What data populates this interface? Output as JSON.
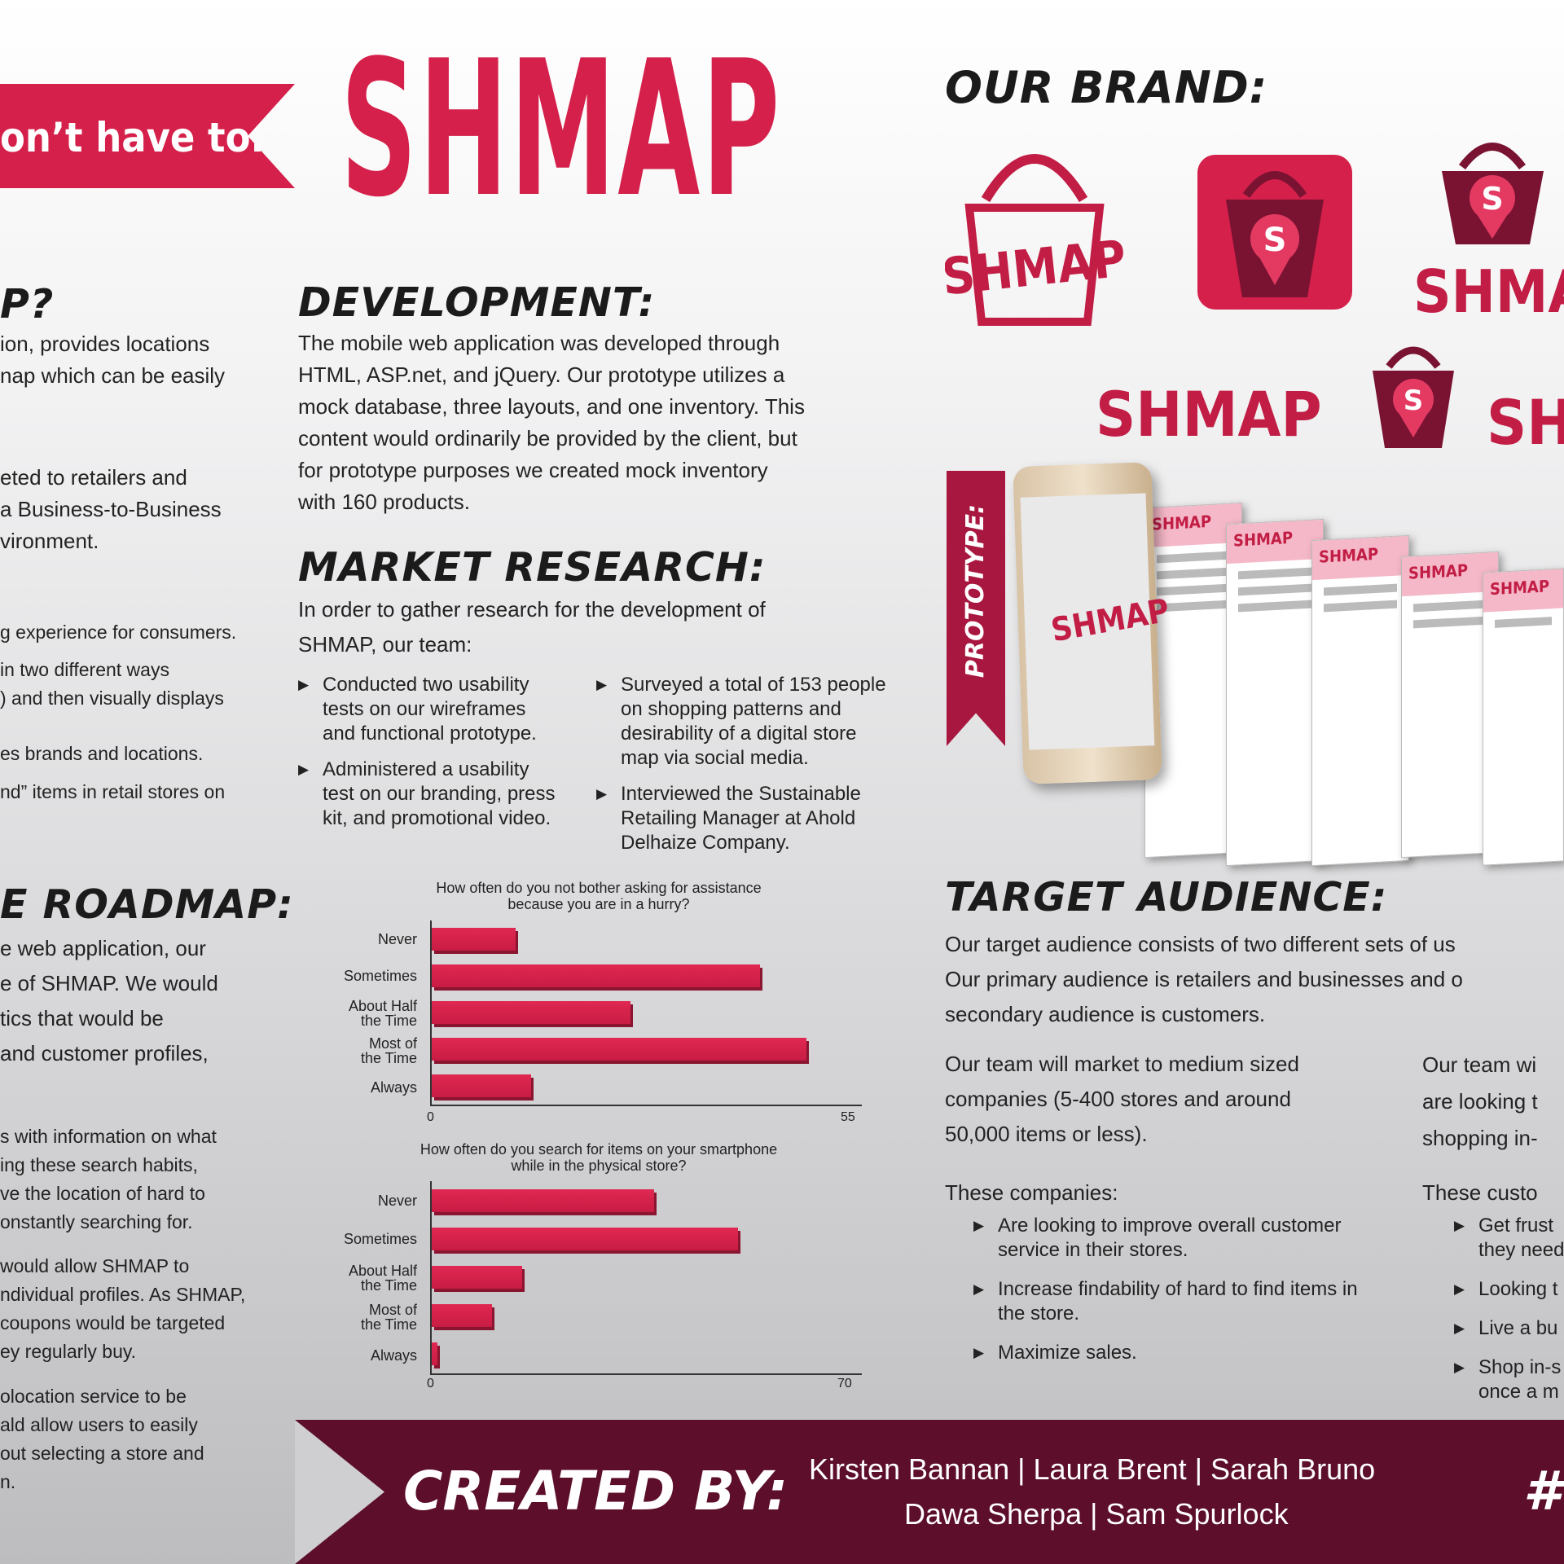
{
  "banner": {
    "text": "on’t have to."
  },
  "logo": {
    "title": "SHMAP"
  },
  "brand": {
    "heading": "OUR BRAND:",
    "logos": [
      "SHMAP",
      "S",
      "S",
      "SHMAP",
      "SHMAP",
      "S",
      "SH"
    ]
  },
  "left": {
    "h1": "P?",
    "p1": [
      "ion, provides locations",
      "nap which can be easily"
    ],
    "p2": [
      "eted to retailers and",
      "a Business-to-Business",
      "vironment."
    ],
    "p3": [
      "g experience for consumers."
    ],
    "p4": [
      "in two different ways",
      ") and then visually displays"
    ],
    "p5": [
      "es brands and locations."
    ],
    "p6": [
      "nd” items in retail stores on"
    ],
    "h2": "E ROADMAP:",
    "p7": [
      "e web application, our",
      "e of SHMAP. We would",
      "tics that would be",
      "and customer profiles,"
    ],
    "p8": [
      "s with information on what",
      "ing these search habits,",
      "ve the location of hard to",
      "onstantly searching for."
    ],
    "p9": [
      "would allow SHMAP to",
      "ndividual profiles. As SHMAP,",
      "coupons would be targeted",
      "ey regularly buy."
    ],
    "p10": [
      "olocation service to be",
      "ald allow users to easily",
      "out selecting a store and",
      "n."
    ]
  },
  "development": {
    "heading": "DEVELOPMENT:",
    "lines": [
      "The mobile web application was developed through",
      "HTML, ASP.net, and jQuery.  Our prototype utilizes a",
      "mock database, three layouts, and one inventory. This",
      "content would ordinarily be provided by the client, but",
      "for prototype purposes we created mock inventory",
      "with 160 products."
    ]
  },
  "market": {
    "heading": "MARKET RESEARCH:",
    "intro": [
      "In order to gather research for the development of",
      "SHMAP, our team:"
    ],
    "col1": [
      [
        "Conducted two usability",
        "tests on our wireframes",
        "and functional prototype."
      ],
      [
        "Administered a usability",
        "test on our branding, press",
        "kit, and promotional video."
      ]
    ],
    "col2": [
      [
        "Surveyed a total of 153 people",
        "on shopping patterns and",
        "desirability of a digital store",
        "map via social media."
      ],
      [
        "Interviewed the Sustainable",
        "Retailing Manager at Ahold",
        "Delhaize Company."
      ]
    ]
  },
  "chart_data": [
    {
      "type": "bar",
      "title": [
        "How often do you not bother asking for assistance",
        "because you are in a hurry?"
      ],
      "categories": [
        [
          "Never"
        ],
        [
          "Sometimes"
        ],
        [
          "About Half",
          "the Time"
        ],
        [
          "Most of",
          "the Time"
        ],
        [
          "Always"
        ]
      ],
      "values": [
        11,
        43,
        26,
        49,
        13
      ],
      "xlim": [
        0,
        55
      ],
      "ticks": [
        "0",
        "55"
      ]
    },
    {
      "type": "bar",
      "title": [
        "How often do you search for items on your smartphone",
        "while in the physical store?"
      ],
      "categories": [
        [
          "Never"
        ],
        [
          "Sometimes"
        ],
        [
          "About Half",
          "the Time"
        ],
        [
          "Most of",
          "the Time"
        ],
        [
          "Always"
        ]
      ],
      "values": [
        37,
        51,
        15,
        10,
        1
      ],
      "xlim": [
        0,
        70
      ],
      "ticks": [
        "0",
        "70"
      ]
    }
  ],
  "prototype": {
    "label": "PROTOTYPE:",
    "screen_title": "SHMAP"
  },
  "target": {
    "heading": "TARGET AUDIENCE:",
    "intro": [
      "Our target audience consists of two different sets of us",
      "Our primary audience is retailers and businesses and o",
      "secondary audience is customers."
    ],
    "col1": [
      "Our team will market to medium sized",
      "companies (5-400 stores and around",
      "50,000 items or less)."
    ],
    "col1_sub": "These companies:",
    "col1_bullets": [
      [
        "Are looking to improve overall customer",
        "service in their stores."
      ],
      [
        "Increase findability of hard to find items in",
        "the store."
      ],
      [
        "Maximize sales."
      ]
    ],
    "col2": [
      "Our team wi",
      "are looking t",
      "shopping in-"
    ],
    "col2_sub": "These custo",
    "col2_bullets": [
      [
        "Get frust",
        "they need"
      ],
      [
        "Looking t"
      ],
      [
        "Live a bu"
      ],
      [
        "Shop in-s",
        "once a m"
      ]
    ]
  },
  "footer": {
    "label": "CREATED  BY:",
    "names_row1": "Kirsten Bannan  |  Laura Brent  |  Sarah Bruno",
    "names_row2": "Dawa Sherpa  |  Sam Spurlock",
    "hash": "#"
  }
}
